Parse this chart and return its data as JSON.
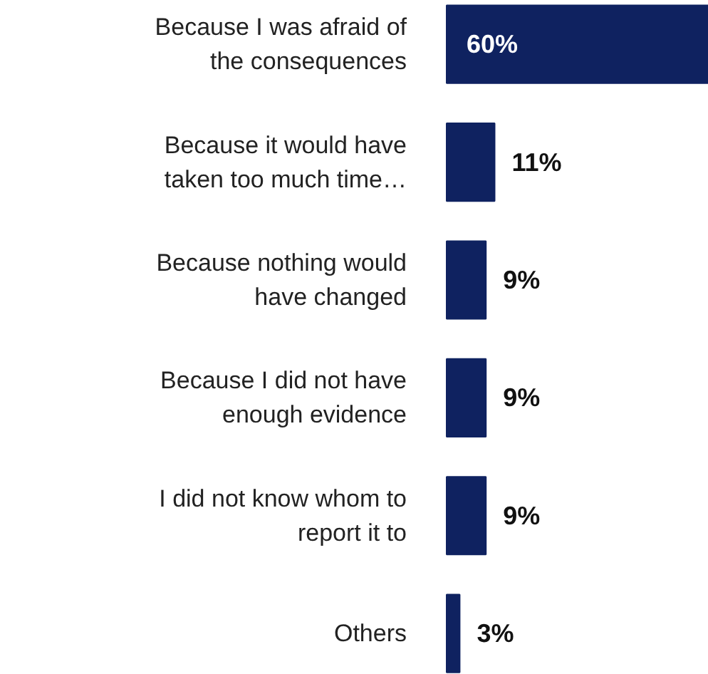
{
  "chart_data": {
    "type": "bar",
    "orientation": "horizontal",
    "categories": [
      "Because I was afraid of the consequences",
      "Because it would have taken too much time…",
      "Because nothing would have changed",
      "Because I did not have enough evidence",
      "I did not know whom to report it to",
      "Others"
    ],
    "values": [
      60,
      11,
      9,
      9,
      9,
      3
    ],
    "value_labels": [
      "60%",
      "11%",
      "9%",
      "9%",
      "9%",
      "3%"
    ],
    "color": "#0f2260",
    "grid": false
  }
}
